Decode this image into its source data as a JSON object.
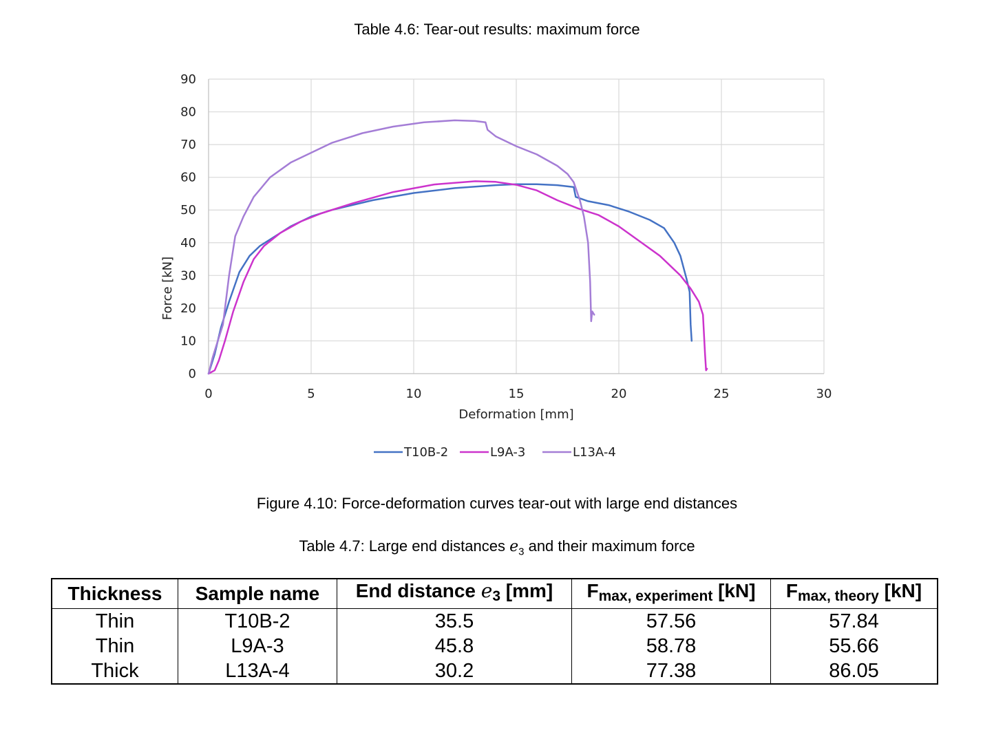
{
  "table46_caption": "Table 4.6: Tear-out results: maximum force",
  "figure_caption": "Figure 4.10: Force-deformation curves tear-out with large end distances",
  "table47_caption": {
    "prefix": "Table 4.7: Large end distances ",
    "symbol": "e",
    "subscript": "3",
    "suffix": " and their maximum force"
  },
  "chart_data": {
    "type": "line",
    "xlabel": "Deformation [mm]",
    "ylabel": "Force [kN]",
    "xlim": [
      0,
      30
    ],
    "ylim": [
      0,
      90
    ],
    "xticks": [
      0,
      5,
      10,
      15,
      20,
      25,
      30
    ],
    "yticks": [
      0,
      10,
      20,
      30,
      40,
      50,
      60,
      70,
      80,
      90
    ],
    "grid": true,
    "legend_position": "bottom",
    "series": [
      {
        "name": "T10B-2",
        "color": "#4472C4",
        "x": [
          0,
          0.3,
          0.6,
          1,
          1.5,
          2,
          2.5,
          3,
          4,
          5,
          6,
          8,
          10,
          12,
          14,
          15,
          16,
          17,
          17.8,
          17.9,
          18.5,
          19.5,
          20.5,
          21.5,
          22.2,
          22.7,
          23,
          23.3,
          23.45,
          23.5,
          23.55
        ],
        "y": [
          0,
          6,
          14,
          22,
          31,
          36,
          39,
          41,
          45,
          48,
          50,
          53,
          55.2,
          56.7,
          57.6,
          57.9,
          57.9,
          57.6,
          57,
          54,
          52.7,
          51.5,
          49.5,
          47,
          44.5,
          40,
          36,
          29,
          25,
          15,
          10
        ]
      },
      {
        "name": "L9A-3",
        "color": "#CC33CC",
        "x": [
          0,
          0.3,
          0.5,
          0.8,
          1.2,
          1.7,
          2.2,
          2.7,
          3.5,
          4.5,
          5.5,
          7,
          9,
          11,
          13,
          14,
          15,
          16,
          17,
          18,
          19,
          20,
          21,
          22,
          23,
          23.5,
          23.9,
          24.1,
          24.2,
          24.25,
          24.3
        ],
        "y": [
          0,
          1,
          4,
          10,
          19,
          28,
          35,
          39,
          43,
          46.5,
          49,
          52,
          55.5,
          57.8,
          58.8,
          58.6,
          57.7,
          56,
          53,
          50.5,
          48.5,
          45,
          40.5,
          36,
          30,
          26,
          22,
          18,
          6,
          1,
          1.5
        ]
      },
      {
        "name": "L13A-4",
        "color": "#A47DD6",
        "x": [
          0,
          0.2,
          0.4,
          0.7,
          1,
          1.3,
          1.7,
          2.2,
          3,
          4,
          5,
          6,
          7.5,
          9,
          10.5,
          12,
          13,
          13.5,
          13.6,
          14,
          15,
          16,
          17,
          17.5,
          17.8,
          18.1,
          18.3,
          18.5,
          18.6,
          18.65,
          18.7,
          18.8
        ],
        "y": [
          0,
          5,
          9,
          15,
          30,
          42,
          48,
          54,
          60,
          64.5,
          67.5,
          70.5,
          73.5,
          75.5,
          76.8,
          77.4,
          77.2,
          76.8,
          74.5,
          72.5,
          69.5,
          67,
          63.5,
          61,
          58.5,
          53,
          48,
          40,
          28,
          16,
          19,
          18
        ]
      }
    ]
  },
  "table47": {
    "headers": {
      "thickness": "Thickness",
      "sample": "Sample name",
      "end_distance": {
        "prefix": "End distance ",
        "symbol": "e",
        "subscript": "3",
        "suffix": " [mm]"
      },
      "fexp": {
        "symbol": "F",
        "subscript": "max, experiment",
        "suffix": " [kN]"
      },
      "fth": {
        "symbol": "F",
        "subscript": "max, theory",
        "suffix": " [kN]"
      }
    },
    "rows": [
      {
        "thickness": "Thin",
        "sample": "T10B-2",
        "end_distance": "35.5",
        "fexp": "57.56",
        "fth": "57.84"
      },
      {
        "thickness": "Thin",
        "sample": "L9A-3",
        "end_distance": "45.8",
        "fexp": "58.78",
        "fth": "55.66"
      },
      {
        "thickness": "Thick",
        "sample": "L13A-4",
        "end_distance": "30.2",
        "fexp": "77.38",
        "fth": "86.05"
      }
    ]
  }
}
